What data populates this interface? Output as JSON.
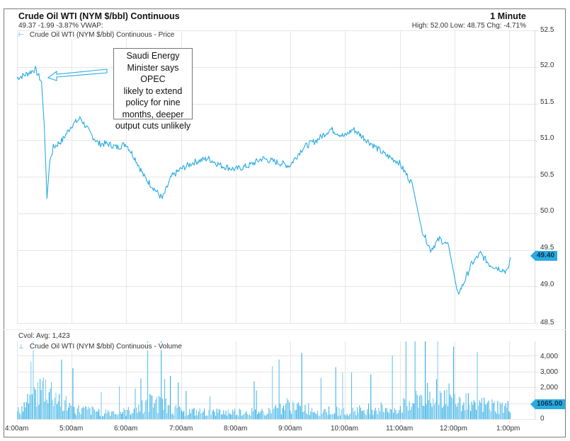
{
  "header": {
    "title": "Crude Oil WTI (NYM $/bbl) Continuous",
    "quote_line": "49.37 -1.99 -3.87% VWAP:",
    "interval": "1 Minute",
    "high_low_change": "High: 52.00 Low: 48.75 Chg: -4.71%"
  },
  "price_panel": {
    "legend": "Crude Oil WTI (NYM $/bbl) Continuous - Price",
    "last_price_badge": "49.40",
    "y_ticks": [
      "52.5",
      "52.0",
      "51.5",
      "51.0",
      "50.5",
      "50.0",
      "49.5",
      "49.0",
      "48.5"
    ],
    "annotation": {
      "lines": [
        "Saudi Energy",
        "Minister says OPEC",
        "likely to extend",
        "policy for nine",
        "months, deeper",
        "output cuts unlikely"
      ]
    }
  },
  "volume_panel": {
    "title": "Cvol: Avg: 1,423",
    "legend": "Crude Oil WTI (NYM $/bbl) Continuous - Volume",
    "last_volume_badge": "1065.00",
    "y_ticks": [
      "4,000",
      "3,000",
      "2,000",
      "0"
    ]
  },
  "x_axis": {
    "ticks": [
      "4:00am",
      "5:00am",
      "6:00am",
      "7:00am",
      "8:00am",
      "9:00am",
      "10:00am",
      "11:00am",
      "12:00pm",
      "1:00pm"
    ]
  },
  "colors": {
    "series": "#29abe2",
    "grid": "#e6e6e6",
    "frame": "#7a7a7a"
  },
  "chart_data": [
    {
      "type": "line",
      "title": "Crude Oil WTI (NYM $/bbl) Continuous - Price",
      "xlabel": "",
      "ylabel": "$/bbl",
      "ylim": [
        48.5,
        52.5
      ],
      "grid": true,
      "legend_position": "top-left",
      "x": [
        "4:00am",
        "4:10am",
        "4:20am",
        "4:27am",
        "4:30am",
        "4:33am",
        "4:36am",
        "4:40am",
        "4:50am",
        "5:00am",
        "5:10am",
        "5:20am",
        "5:30am",
        "5:40am",
        "5:50am",
        "6:00am",
        "6:10am",
        "6:20am",
        "6:30am",
        "6:40am",
        "6:50am",
        "7:00am",
        "7:15am",
        "7:30am",
        "7:45am",
        "8:00am",
        "8:15am",
        "8:30am",
        "8:45am",
        "9:00am",
        "9:15am",
        "9:30am",
        "9:45am",
        "10:00am",
        "10:10am",
        "10:20am",
        "10:30am",
        "10:45am",
        "11:00am",
        "11:15am",
        "11:25am",
        "11:35am",
        "11:45am",
        "11:55am",
        "12:05pm",
        "12:10pm",
        "12:20pm",
        "12:30pm",
        "12:40pm",
        "12:50pm",
        "1:00pm",
        "1:03pm"
      ],
      "values": [
        51.85,
        51.9,
        51.97,
        51.8,
        51.2,
        50.2,
        50.7,
        50.9,
        51.0,
        51.2,
        51.3,
        51.1,
        50.95,
        50.95,
        50.9,
        50.95,
        50.75,
        50.5,
        50.35,
        50.2,
        50.5,
        50.6,
        50.7,
        50.75,
        50.65,
        50.6,
        50.65,
        50.75,
        50.7,
        50.65,
        50.9,
        51.0,
        51.15,
        51.05,
        51.15,
        51.05,
        50.95,
        50.8,
        50.7,
        50.4,
        49.8,
        49.5,
        49.65,
        49.55,
        48.9,
        49.0,
        49.3,
        49.45,
        49.3,
        49.25,
        49.2,
        49.4
      ],
      "annotations": [
        "Saudi Energy Minister says OPEC likely to extend policy for nine months, deeper output cuts unlikely"
      ],
      "last_value_label": 49.4
    },
    {
      "type": "bar",
      "title": "Crude Oil WTI (NYM $/bbl) Continuous - Volume",
      "subtitle": "Cvol: Avg: 1,423",
      "ylim": [
        0,
        4800
      ],
      "grid": true,
      "x": [
        "4:00am",
        "4:30am",
        "5:00am",
        "5:30am",
        "6:00am",
        "6:30am",
        "7:00am",
        "7:30am",
        "8:00am",
        "8:30am",
        "9:00am",
        "9:30am",
        "10:00am",
        "10:30am",
        "11:00am",
        "11:30am",
        "12:00pm",
        "12:30pm",
        "1:00pm"
      ],
      "values": [
        600,
        3000,
        900,
        700,
        650,
        1600,
        700,
        600,
        650,
        700,
        1300,
        800,
        700,
        1000,
        1000,
        2400,
        2200,
        1300,
        1065
      ],
      "last_value_label": 1065.0
    }
  ]
}
